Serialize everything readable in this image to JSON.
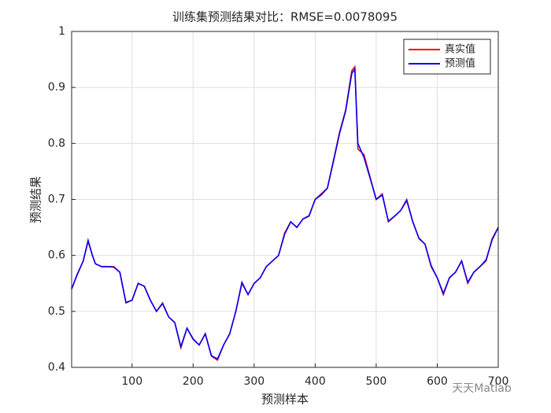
{
  "chart_data": {
    "type": "line",
    "title": "训练集预测结果对比：RMSE=0.0078095",
    "xlabel": "预测样本",
    "ylabel": "预测结果",
    "watermark": "天天Matlab",
    "x": [
      1,
      10,
      20,
      28,
      35,
      40,
      50,
      60,
      70,
      80,
      90,
      100,
      110,
      120,
      130,
      140,
      150,
      160,
      170,
      180,
      190,
      200,
      210,
      220,
      230,
      240,
      250,
      260,
      270,
      280,
      290,
      300,
      310,
      320,
      330,
      340,
      350,
      360,
      370,
      380,
      390,
      400,
      410,
      420,
      430,
      440,
      450,
      460,
      465,
      470,
      480,
      490,
      500,
      510,
      520,
      530,
      540,
      550,
      560,
      570,
      580,
      590,
      600,
      610,
      620,
      630,
      640,
      650,
      660,
      670,
      680,
      690,
      700
    ],
    "series": [
      {
        "name": "真实值",
        "color": "#ff0000",
        "values": [
          0.54,
          0.565,
          0.59,
          0.625,
          0.6,
          0.585,
          0.58,
          0.58,
          0.58,
          0.57,
          0.515,
          0.52,
          0.55,
          0.545,
          0.52,
          0.5,
          0.515,
          0.49,
          0.48,
          0.435,
          0.47,
          0.45,
          0.44,
          0.46,
          0.42,
          0.413,
          0.44,
          0.46,
          0.5,
          0.55,
          0.53,
          0.55,
          0.56,
          0.58,
          0.59,
          0.6,
          0.64,
          0.66,
          0.65,
          0.665,
          0.67,
          0.7,
          0.71,
          0.72,
          0.77,
          0.82,
          0.86,
          0.93,
          0.937,
          0.79,
          0.78,
          0.74,
          0.7,
          0.71,
          0.66,
          0.67,
          0.68,
          0.7,
          0.66,
          0.63,
          0.62,
          0.58,
          0.56,
          0.53,
          0.56,
          0.57,
          0.59,
          0.55,
          0.57,
          0.58,
          0.59,
          0.63,
          0.65
        ]
      },
      {
        "name": "预测值",
        "color": "#0000ff",
        "values": [
          0.54,
          0.566,
          0.59,
          0.627,
          0.6,
          0.585,
          0.58,
          0.58,
          0.579,
          0.57,
          0.516,
          0.52,
          0.55,
          0.545,
          0.52,
          0.5,
          0.514,
          0.49,
          0.48,
          0.437,
          0.47,
          0.451,
          0.44,
          0.46,
          0.421,
          0.415,
          0.44,
          0.46,
          0.5,
          0.552,
          0.53,
          0.55,
          0.56,
          0.58,
          0.59,
          0.6,
          0.638,
          0.66,
          0.65,
          0.665,
          0.671,
          0.7,
          0.708,
          0.72,
          0.768,
          0.818,
          0.858,
          0.925,
          0.933,
          0.8,
          0.775,
          0.738,
          0.7,
          0.708,
          0.661,
          0.67,
          0.68,
          0.698,
          0.66,
          0.631,
          0.62,
          0.582,
          0.56,
          0.532,
          0.56,
          0.57,
          0.59,
          0.552,
          0.57,
          0.58,
          0.592,
          0.628,
          0.65
        ]
      }
    ],
    "xlim": [
      1,
      700
    ],
    "xticks": [
      100,
      200,
      300,
      400,
      500,
      600,
      700
    ],
    "ylim": [
      0.4,
      1
    ],
    "yticks": [
      0.4,
      0.5,
      0.6,
      0.7,
      0.8,
      0.9,
      1
    ],
    "grid": true,
    "legend": "northeast"
  }
}
